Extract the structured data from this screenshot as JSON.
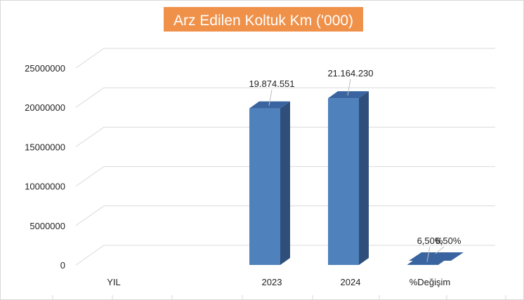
{
  "chart_data": {
    "type": "bar",
    "title": "Arz Edilen Koltuk Km ('000)",
    "categories": [
      "YIL",
      "2023",
      "2024",
      "%Değişim"
    ],
    "values": [
      0,
      19874551,
      21164230,
      6.5
    ],
    "data_labels": [
      "",
      "19.874.551",
      "21.164.230",
      "6,50%"
    ],
    "y_ticks": [
      0,
      5000000,
      10000000,
      15000000,
      20000000,
      25000000
    ],
    "y_tick_labels": [
      "0",
      "5000000",
      "10000000",
      "15000000",
      "20000000",
      "25000000"
    ],
    "ylim": [
      0,
      25000000
    ],
    "grid": true,
    "legend": "none",
    "colors": {
      "bar_front": "#4f81bd",
      "bar_side": "#2f4f7a",
      "bar_top": "#3a64a0",
      "title_bg": "#f0914a",
      "grid": "#d9d9d9"
    }
  }
}
